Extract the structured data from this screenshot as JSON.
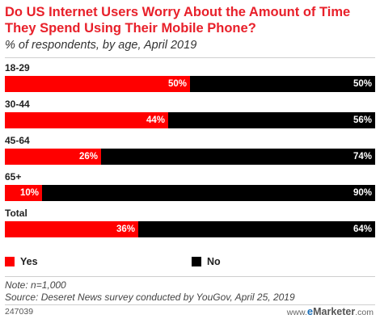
{
  "chart_data": {
    "type": "bar",
    "orientation": "horizontal",
    "stacked": true,
    "title": "Do US Internet Users Worry About the Amount of Time They Spend Using Their Mobile Phone?",
    "subtitle": "% of respondents, by age, April 2019",
    "categories": [
      "18-29",
      "30-44",
      "45-64",
      "65+",
      "Total"
    ],
    "series": [
      {
        "name": "Yes",
        "values": [
          50,
          44,
          26,
          10,
          36
        ],
        "labels": [
          "50%",
          "44%",
          "26%",
          "10%",
          "36%"
        ],
        "color": "#ff0000"
      },
      {
        "name": "No",
        "values": [
          50,
          56,
          74,
          90,
          64
        ],
        "labels": [
          "50%",
          "56%",
          "74%",
          "90%",
          "64%"
        ],
        "color": "#000000"
      }
    ],
    "xlim": [
      0,
      100
    ],
    "legend_position": "bottom",
    "grid": false
  },
  "footer": {
    "note": "Note: n=1,000",
    "source": "Source: Deseret News survey conducted by YouGov, April 25, 2019",
    "chart_id": "247039",
    "brand_prefix": "www.",
    "brand_e": "e",
    "brand_name": "Marketer",
    "brand_suffix": ".com"
  }
}
